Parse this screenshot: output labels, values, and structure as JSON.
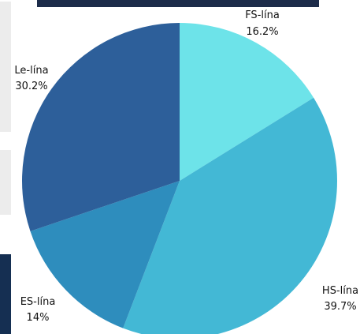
{
  "chart_data": {
    "type": "pie",
    "slices": [
      {
        "label": "FS-lína",
        "value": 16.2,
        "display": "16.2%",
        "color": "#6de3e9"
      },
      {
        "label": "HS-lína",
        "value": 39.7,
        "display": "39.7%",
        "color": "#43b8d5"
      },
      {
        "label": "ES-lína",
        "value": 14,
        "display": "14%",
        "color": "#2e8dbd"
      },
      {
        "label": "Le-lína",
        "value": 30.2,
        "display": "30.2%",
        "color": "#2d5f9a"
      }
    ]
  }
}
